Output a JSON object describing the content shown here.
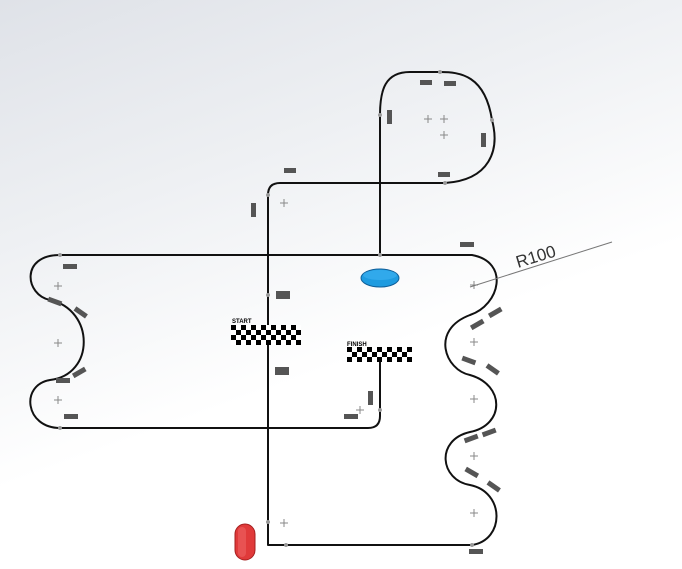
{
  "labels": {
    "start": "START",
    "finish": "FINISH",
    "radius": "R100"
  },
  "colors": {
    "track": "#111111",
    "marker": "#555555",
    "blue_object": "#1e9be0",
    "red_object": "#e03a3a",
    "construction": "#888888"
  },
  "objects": {
    "blue": "blue-puck",
    "red": "red-puck"
  }
}
